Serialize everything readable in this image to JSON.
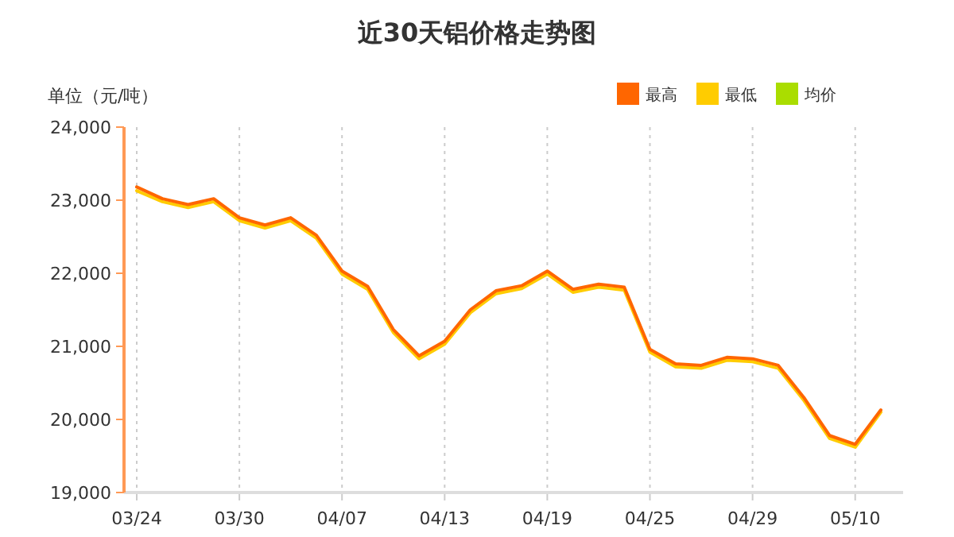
{
  "chart_data": {
    "type": "line",
    "title": "近30天铝价格走势图",
    "ylabel": "单位（元/吨）",
    "categories": [
      "03/24",
      null,
      null,
      null,
      "03/30",
      null,
      null,
      null,
      "04/07",
      null,
      null,
      null,
      "04/13",
      null,
      null,
      null,
      "04/19",
      null,
      null,
      null,
      "04/25",
      null,
      null,
      null,
      "04/29",
      null,
      null,
      null,
      "05/10",
      null
    ],
    "series": [
      {
        "name": "最高",
        "color": "#ff6600",
        "values": [
          23180,
          23020,
          22940,
          23020,
          22760,
          22660,
          22760,
          22520,
          22030,
          21820,
          21230,
          20870,
          21070,
          21500,
          21760,
          21830,
          22030,
          21780,
          21850,
          21810,
          20960,
          20760,
          20740,
          20850,
          20830,
          20740,
          20300,
          19780,
          19660,
          20130
        ]
      },
      {
        "name": "最低",
        "color": "#ffcc00",
        "values": [
          23130,
          22980,
          22900,
          22980,
          22720,
          22620,
          22720,
          22480,
          21990,
          21780,
          21190,
          20830,
          21030,
          21460,
          21720,
          21790,
          21990,
          21740,
          21810,
          21770,
          20920,
          20720,
          20700,
          20810,
          20790,
          20700,
          20260,
          19740,
          19620,
          20100
        ]
      },
      {
        "name": "均价",
        "color": "#aadd00",
        "values": [
          null,
          null,
          null,
          null,
          null,
          null,
          null,
          null,
          null,
          null,
          null,
          null,
          null,
          null,
          null,
          null,
          null,
          null,
          null,
          null,
          null,
          null,
          null,
          null,
          null,
          null,
          null,
          null,
          null,
          null
        ]
      }
    ],
    "ylim": [
      19000,
      24000
    ],
    "yticks": [
      {
        "value": 19000,
        "label": "19,000"
      },
      {
        "value": 20000,
        "label": "20,000"
      },
      {
        "value": 21000,
        "label": "21,000"
      },
      {
        "value": 22000,
        "label": "22,000"
      },
      {
        "value": 23000,
        "label": "23,000"
      },
      {
        "value": 24000,
        "label": "24,000"
      }
    ],
    "grid": "x",
    "legend": "top right",
    "marker": "none",
    "line_style": "solid"
  }
}
